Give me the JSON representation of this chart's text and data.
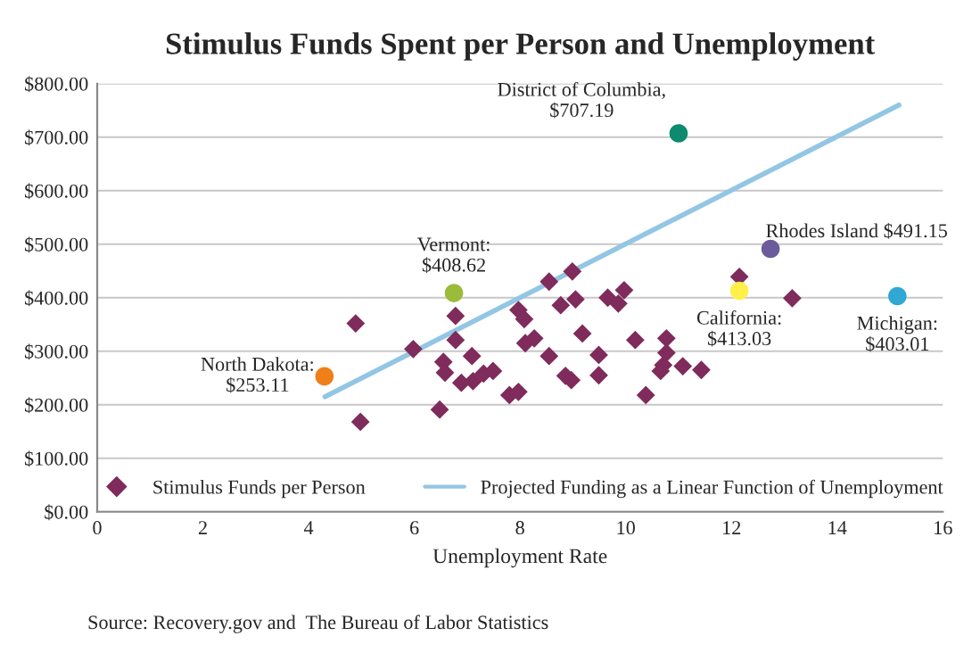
{
  "chart_data": {
    "type": "scatter",
    "title": "Stimulus Funds Spent per Person and Unemployment",
    "xlabel": "Unemployment Rate",
    "xlim": [
      0,
      16
    ],
    "xticks": [
      0,
      2,
      4,
      6,
      8,
      10,
      12,
      14,
      16
    ],
    "ylim": [
      0,
      800
    ],
    "yticks": [
      {
        "value": 0,
        "label": "$0.00"
      },
      {
        "value": 100,
        "label": "$100.00"
      },
      {
        "value": 200,
        "label": "$200.00"
      },
      {
        "value": 300,
        "label": "$300.00"
      },
      {
        "value": 400,
        "label": "$400.00"
      },
      {
        "value": 500,
        "label": "$500.00"
      },
      {
        "value": 600,
        "label": "$600.00"
      },
      {
        "value": 700,
        "label": "$700.00"
      },
      {
        "value": 800,
        "label": "$800.00"
      }
    ],
    "grid": "y",
    "legend": "bottom",
    "series": [
      {
        "name": "Stimulus Funds per Person",
        "marker": "diamond",
        "color": "#7f2b5b",
        "x": [
          4.89,
          5.98,
          6.78,
          6.78,
          6.55,
          6.58,
          7.09,
          6.89,
          7.11,
          7.22,
          7.31,
          7.49,
          7.8,
          7.97,
          6.48,
          4.98,
          7.97,
          8.08,
          8.1,
          8.55,
          8.99,
          8.27,
          8.77,
          9.05,
          9.66,
          9.86,
          9.97,
          9.18,
          8.55,
          8.86,
          8.97,
          9.49,
          9.49,
          10.18,
          10.77,
          10.77,
          10.71,
          10.66,
          11.08,
          11.43,
          10.38,
          12.15,
          13.15
        ],
        "values": [
          352,
          304,
          366,
          321,
          280,
          260,
          291,
          241,
          244,
          null,
          258,
          263,
          218,
          224,
          191,
          168,
          377,
          360,
          315,
          430,
          449,
          324,
          386,
          397,
          400,
          389,
          414,
          333,
          291,
          254,
          246,
          293,
          255,
          321,
          324,
          297,
          274,
          263,
          272,
          265,
          218,
          439,
          399
        ]
      },
      {
        "name": "Projected Funding as a Linear Function of Unemployment",
        "type": "line",
        "color": "#93c6e4",
        "x": [
          4.31,
          15.17
        ],
        "values": [
          215,
          760
        ]
      },
      {
        "marker": "circle",
        "x": [
          4.3,
          6.75,
          11.0,
          12.74,
          12.15,
          15.14
        ],
        "values": [
          253.11,
          408.62,
          707.19,
          491.15,
          413.03,
          403.01
        ],
        "colors": [
          "#f07f19",
          "#9bbb3b",
          "#0e8a6e",
          "#6b5b9b",
          "#fff04a",
          "#31a8d4"
        ]
      }
    ],
    "annotations": [
      {
        "text": "North Dakota:\n$253.11",
        "x": 4.3,
        "y": 253.11
      },
      {
        "text": "Vermont:\n$408.62",
        "x": 6.75,
        "y": 408.62
      },
      {
        "text": "District of Columbia,\n$707.19",
        "x": 11.0,
        "y": 707.19
      },
      {
        "text": "Rhodes Island $491.15",
        "x": 12.74,
        "y": 491.15
      },
      {
        "text": "California:\n$413.03",
        "x": 12.15,
        "y": 413.03
      },
      {
        "text": "Michigan:\n$403.01",
        "x": 15.14,
        "y": 403.01
      },
      "Source: Recovery.gov and  The Bureau of Labor Statistics"
    ]
  }
}
